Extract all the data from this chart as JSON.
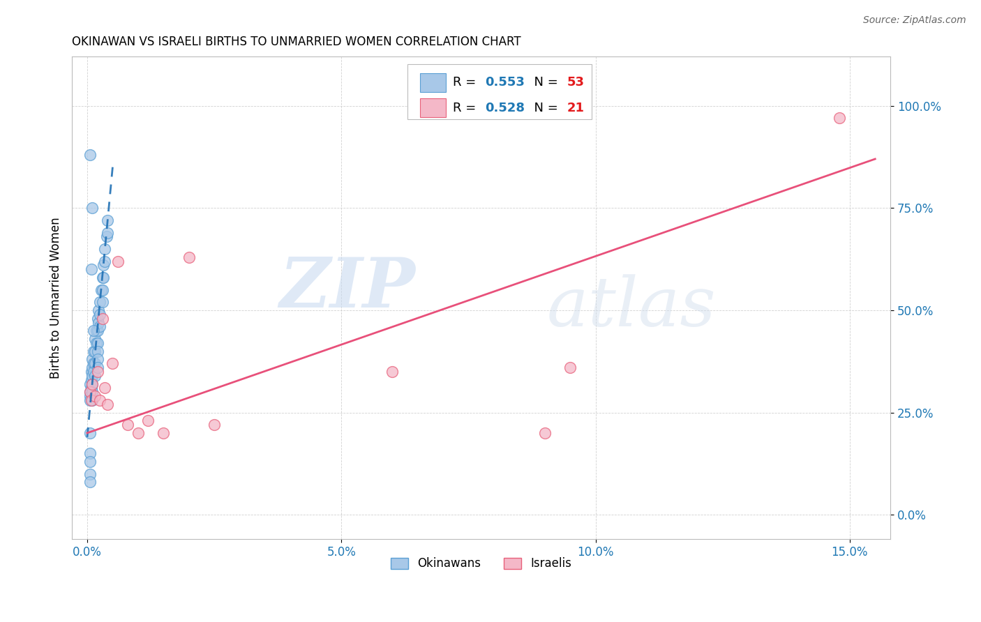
{
  "title": "OKINAWAN VS ISRAELI BIRTHS TO UNMARRIED WOMEN CORRELATION CHART",
  "source": "Source: ZipAtlas.com",
  "ylabel": "Births to Unmarried Women",
  "xlabel_ticks": [
    "0.0%",
    "5.0%",
    "10.0%",
    "15.0%"
  ],
  "xlabel_vals": [
    0.0,
    0.05,
    0.1,
    0.15
  ],
  "ylabel_ticks": [
    "0.0%",
    "25.0%",
    "50.0%",
    "75.0%",
    "100.0%"
  ],
  "ylabel_vals": [
    0.0,
    0.25,
    0.5,
    0.75,
    1.0
  ],
  "xlim": [
    -0.003,
    0.158
  ],
  "ylim": [
    -0.06,
    1.12
  ],
  "okinawan_color": "#a8c8e8",
  "okinawan_edge": "#5a9fd4",
  "israeli_color": "#f4b8c8",
  "israeli_edge": "#e8607a",
  "okinawan_R": "0.553",
  "okinawan_N": "53",
  "israeli_R": "0.528",
  "israeli_N": "21",
  "legend_R_color": "#1f78b4",
  "legend_N_color": "#e31a1c",
  "watermark_line1": "ZIP",
  "watermark_line2": "atlas",
  "okinawan_x": [
    0.0005,
    0.0005,
    0.0005,
    0.0005,
    0.0005,
    0.0008,
    0.0008,
    0.0008,
    0.001,
    0.001,
    0.001,
    0.001,
    0.001,
    0.001,
    0.0012,
    0.0012,
    0.0012,
    0.0015,
    0.0015,
    0.0015,
    0.0015,
    0.0018,
    0.0018,
    0.002,
    0.002,
    0.002,
    0.002,
    0.002,
    0.002,
    0.0022,
    0.0022,
    0.0025,
    0.0025,
    0.0025,
    0.0028,
    0.003,
    0.003,
    0.003,
    0.0032,
    0.0032,
    0.0035,
    0.0035,
    0.0038,
    0.004,
    0.004,
    0.0005,
    0.0005,
    0.0005,
    0.0005,
    0.0005,
    0.0008,
    0.001,
    0.0012
  ],
  "okinawan_y": [
    0.32,
    0.3,
    0.29,
    0.28,
    0.2,
    0.35,
    0.33,
    0.31,
    0.38,
    0.36,
    0.34,
    0.32,
    0.3,
    0.28,
    0.4,
    0.37,
    0.35,
    0.43,
    0.4,
    0.37,
    0.34,
    0.45,
    0.42,
    0.48,
    0.45,
    0.42,
    0.4,
    0.38,
    0.36,
    0.5,
    0.47,
    0.52,
    0.49,
    0.46,
    0.55,
    0.58,
    0.55,
    0.52,
    0.61,
    0.58,
    0.65,
    0.62,
    0.68,
    0.72,
    0.69,
    0.88,
    0.15,
    0.13,
    0.1,
    0.08,
    0.6,
    0.75,
    0.45
  ],
  "israeli_x": [
    0.0005,
    0.0008,
    0.001,
    0.0015,
    0.002,
    0.0025,
    0.003,
    0.0035,
    0.004,
    0.005,
    0.006,
    0.008,
    0.01,
    0.012,
    0.015,
    0.02,
    0.025,
    0.06,
    0.09,
    0.095,
    0.148
  ],
  "israeli_y": [
    0.3,
    0.28,
    0.32,
    0.29,
    0.35,
    0.28,
    0.48,
    0.31,
    0.27,
    0.37,
    0.62,
    0.22,
    0.2,
    0.23,
    0.2,
    0.63,
    0.22,
    0.35,
    0.2,
    0.36,
    0.97
  ],
  "okinawan_line_x": [
    0.0,
    0.005
  ],
  "okinawan_line_y": [
    0.19,
    0.85
  ],
  "israeli_line_x": [
    0.0,
    0.155
  ],
  "israeli_line_y": [
    0.2,
    0.87
  ]
}
